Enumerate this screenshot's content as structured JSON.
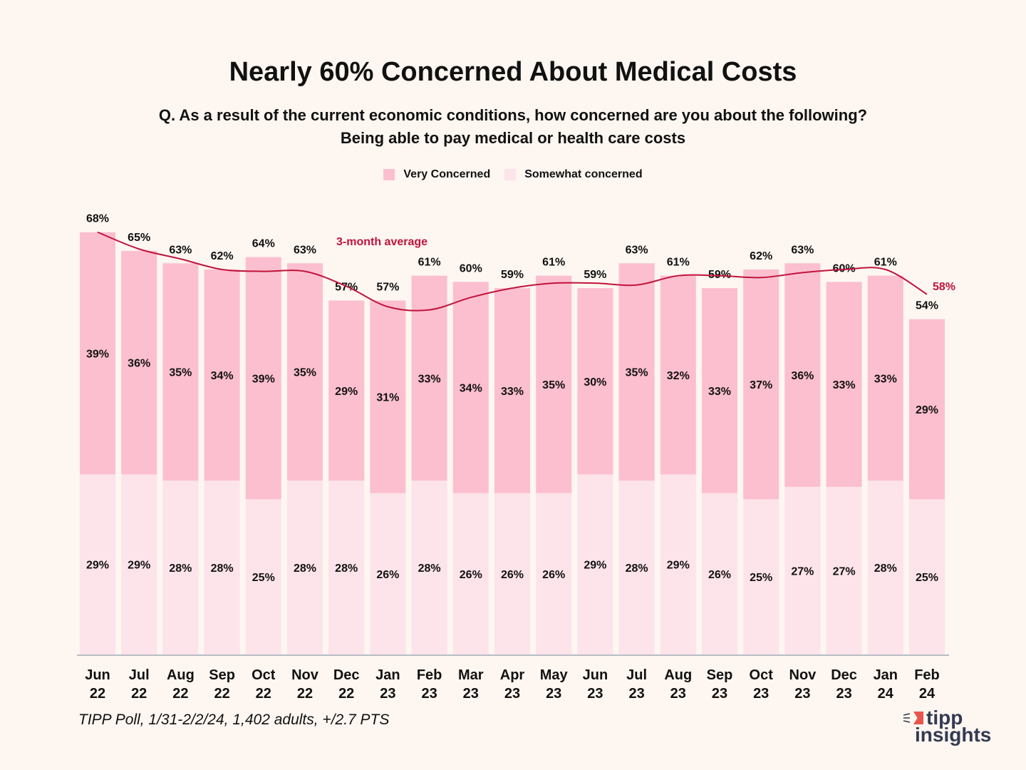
{
  "title": "Nearly 60% Concerned About Medical Costs",
  "subtitle_line1": "Q. As a result of the current economic conditions, how concerned are you about the following?",
  "subtitle_line2": "Being able to pay medical or health care costs",
  "legend": [
    {
      "label": "Very Concerned",
      "color": "#fcbfcf"
    },
    {
      "label": "Somewhat concerned",
      "color": "#fde3ea"
    }
  ],
  "source": "TIPP Poll, 1/31-2/2/24, 1,402 adults, +/2.7 PTS",
  "logo": {
    "line1": "tipp",
    "line2": "insights"
  },
  "colors": {
    "very": "#fcbfcf",
    "somewhat": "#fde3ea",
    "average_line": "#c0143c",
    "axis": "#b9bcc4",
    "text": "#111111"
  },
  "chart_data": {
    "type": "bar",
    "stacked": true,
    "title": "Nearly 60% Concerned About Medical Costs",
    "xlabel": "",
    "ylabel": "",
    "ylim": [
      0,
      70
    ],
    "grid": false,
    "legend_position": "top-center",
    "categories": [
      [
        "Jun",
        "22"
      ],
      [
        "Jul",
        "22"
      ],
      [
        "Aug",
        "22"
      ],
      [
        "Sep",
        "22"
      ],
      [
        "Oct",
        "22"
      ],
      [
        "Nov",
        "22"
      ],
      [
        "Dec",
        "22"
      ],
      [
        "Jan",
        "23"
      ],
      [
        "Feb",
        "23"
      ],
      [
        "Mar",
        "23"
      ],
      [
        "Apr",
        "23"
      ],
      [
        "May",
        "23"
      ],
      [
        "Jun",
        "23"
      ],
      [
        "Jul",
        "23"
      ],
      [
        "Aug",
        "23"
      ],
      [
        "Sep",
        "23"
      ],
      [
        "Oct",
        "23"
      ],
      [
        "Nov",
        "23"
      ],
      [
        "Dec",
        "23"
      ],
      [
        "Jan",
        "24"
      ],
      [
        "Feb",
        "24"
      ]
    ],
    "series": [
      {
        "name": "Somewhat concerned",
        "values": [
          29,
          29,
          28,
          28,
          25,
          28,
          28,
          26,
          28,
          26,
          26,
          26,
          29,
          28,
          29,
          26,
          25,
          27,
          27,
          28,
          25
        ]
      },
      {
        "name": "Very Concerned",
        "values": [
          39,
          36,
          35,
          34,
          39,
          35,
          29,
          31,
          33,
          34,
          33,
          35,
          30,
          35,
          32,
          33,
          37,
          36,
          33,
          33,
          29
        ]
      }
    ],
    "totals": [
      68,
      65,
      63,
      62,
      64,
      63,
      57,
      57,
      61,
      60,
      59,
      61,
      59,
      63,
      61,
      59,
      62,
      63,
      60,
      61,
      54
    ],
    "line": {
      "name": "3-month average",
      "label": "3-month average",
      "end_label": "58%",
      "values": [
        68,
        65.3,
        63.7,
        62.0,
        61.7,
        61.7,
        59.3,
        56.0,
        55.5,
        57.5,
        59.0,
        59.8,
        59.8,
        59.5,
        61.0,
        61.0,
        60.7,
        61.5,
        62.0,
        62.0,
        58.0
      ]
    }
  }
}
